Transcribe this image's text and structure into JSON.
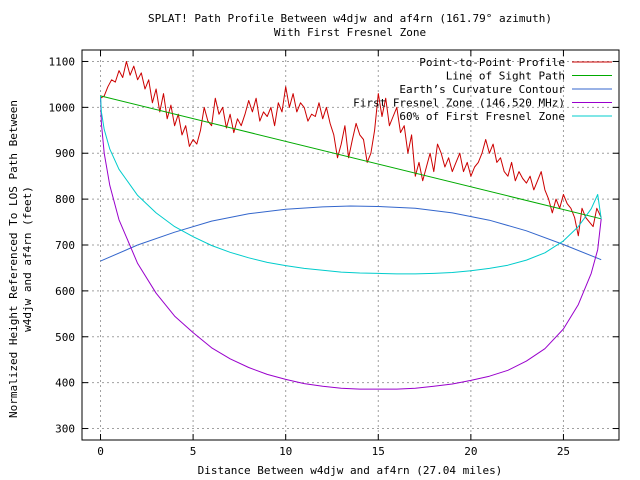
{
  "chart_data": {
    "type": "line",
    "title": "SPLAT! Path Profile Between w4djw and af4rn (161.79° azimuth)",
    "subtitle": "With First Fresnel Zone",
    "xlabel": "Distance Between w4djw and af4rn (27.04 miles)",
    "ylabel_line1": "Normalized Height Referenced To LOS Path Between",
    "ylabel_line2": "w4djw and af4rn (feet)",
    "xlim": [
      -1,
      28
    ],
    "ylim": [
      275,
      1125
    ],
    "xticks": [
      0,
      5,
      10,
      15,
      20,
      25
    ],
    "yticks": [
      300,
      400,
      500,
      600,
      700,
      800,
      900,
      1000,
      1100
    ],
    "grid": true,
    "legend_position": "top-right",
    "series": [
      {
        "name": "Point-to-Point Profile",
        "color": "#cc0000",
        "x": [
          0,
          0.2,
          0.4,
          0.6,
          0.8,
          1.0,
          1.2,
          1.4,
          1.6,
          1.8,
          2.0,
          2.2,
          2.4,
          2.6,
          2.8,
          3.0,
          3.2,
          3.4,
          3.6,
          3.8,
          4.0,
          4.2,
          4.4,
          4.6,
          4.8,
          5.0,
          5.2,
          5.4,
          5.6,
          5.8,
          6.0,
          6.2,
          6.4,
          6.6,
          6.8,
          7.0,
          7.2,
          7.4,
          7.6,
          7.8,
          8.0,
          8.2,
          8.4,
          8.6,
          8.8,
          9.0,
          9.2,
          9.4,
          9.6,
          9.8,
          10.0,
          10.2,
          10.4,
          10.6,
          10.8,
          11.0,
          11.2,
          11.4,
          11.6,
          11.8,
          12.0,
          12.2,
          12.4,
          12.6,
          12.8,
          13.0,
          13.2,
          13.4,
          13.6,
          13.8,
          14.0,
          14.2,
          14.4,
          14.6,
          14.8,
          15.0,
          15.2,
          15.4,
          15.6,
          15.8,
          16.0,
          16.2,
          16.4,
          16.6,
          16.8,
          17.0,
          17.2,
          17.4,
          17.6,
          17.8,
          18.0,
          18.2,
          18.4,
          18.6,
          18.8,
          19.0,
          19.2,
          19.4,
          19.6,
          19.8,
          20.0,
          20.2,
          20.4,
          20.6,
          20.8,
          21.0,
          21.2,
          21.4,
          21.6,
          21.8,
          22.0,
          22.2,
          22.4,
          22.6,
          22.8,
          23.0,
          23.2,
          23.4,
          23.6,
          23.8,
          24.0,
          24.2,
          24.4,
          24.6,
          24.8,
          25.0,
          25.2,
          25.4,
          25.6,
          25.8,
          26.0,
          26.2,
          26.4,
          26.6,
          26.8,
          27.04
        ],
        "values": [
          1020,
          1025,
          1045,
          1060,
          1055,
          1080,
          1065,
          1100,
          1070,
          1090,
          1060,
          1075,
          1040,
          1060,
          1010,
          1040,
          990,
          1030,
          975,
          1005,
          960,
          985,
          940,
          960,
          915,
          930,
          920,
          950,
          1000,
          970,
          960,
          1020,
          985,
          1000,
          955,
          985,
          945,
          975,
          960,
          985,
          1015,
          990,
          1020,
          970,
          990,
          980,
          1000,
          960,
          1010,
          990,
          1045,
          1000,
          1030,
          990,
          1010,
          1000,
          970,
          985,
          980,
          1010,
          975,
          1000,
          965,
          940,
          890,
          920,
          960,
          890,
          930,
          965,
          940,
          930,
          880,
          900,
          950,
          1030,
          980,
          1020,
          960,
          980,
          1000,
          945,
          960,
          900,
          940,
          850,
          880,
          840,
          870,
          900,
          860,
          920,
          900,
          870,
          890,
          860,
          880,
          900,
          860,
          880,
          850,
          870,
          880,
          900,
          930,
          900,
          920,
          880,
          890,
          860,
          850,
          880,
          840,
          860,
          845,
          835,
          850,
          820,
          840,
          860,
          820,
          800,
          770,
          800,
          780,
          810,
          790,
          780,
          760,
          720,
          780,
          760,
          750,
          740,
          780,
          760
        ]
      },
      {
        "name": "Line of Sight Path",
        "color": "#00aa00",
        "x": [
          0,
          27.04
        ],
        "values": [
          1025,
          757
        ]
      },
      {
        "name": "Earth’s Curvature Contour",
        "color": "#3366cc",
        "x": [
          0,
          2,
          4,
          6,
          8,
          10,
          12,
          13.5,
          15,
          17,
          19,
          21,
          23,
          25,
          27.04
        ],
        "values": [
          665,
          700,
          728,
          752,
          768,
          778,
          783,
          785,
          784,
          780,
          770,
          754,
          731,
          701,
          668
        ]
      },
      {
        "name": "First Fresnel Zone (146.520 MHz)",
        "color": "#9900cc",
        "x": [
          0,
          0.05,
          0.2,
          0.5,
          1,
          2,
          3,
          4,
          5,
          6,
          7,
          8,
          9,
          10,
          11,
          12,
          13,
          14,
          15,
          16,
          17,
          18,
          19,
          20,
          21,
          22,
          23,
          24,
          25,
          25.8,
          26.5,
          26.85,
          27.04
        ],
        "values": [
          1025,
          965,
          900,
          830,
          755,
          660,
          595,
          545,
          509,
          476,
          452,
          433,
          418,
          407,
          398,
          392,
          388,
          386,
          386,
          386,
          388,
          392,
          397,
          405,
          414,
          427,
          447,
          474,
          517,
          570,
          638,
          690,
          757
        ]
      },
      {
        "name": "60% of First Fresnel Zone",
        "color": "#00cccc",
        "x": [
          0,
          0.05,
          0.2,
          0.5,
          1,
          2,
          3,
          4,
          5,
          6,
          7,
          8,
          9,
          10,
          11,
          12,
          13,
          14,
          15,
          16,
          17,
          18,
          19,
          20,
          21,
          22,
          23,
          24,
          25,
          25.8,
          26.5,
          26.85,
          27.04
        ],
        "values": [
          1025,
          990,
          952,
          909,
          865,
          808,
          770,
          740,
          718,
          699,
          684,
          672,
          662,
          655,
          649,
          645,
          641,
          639,
          638,
          637,
          637,
          638,
          640,
          644,
          649,
          656,
          667,
          683,
          709,
          740,
          779,
          810,
          757
        ]
      }
    ]
  }
}
